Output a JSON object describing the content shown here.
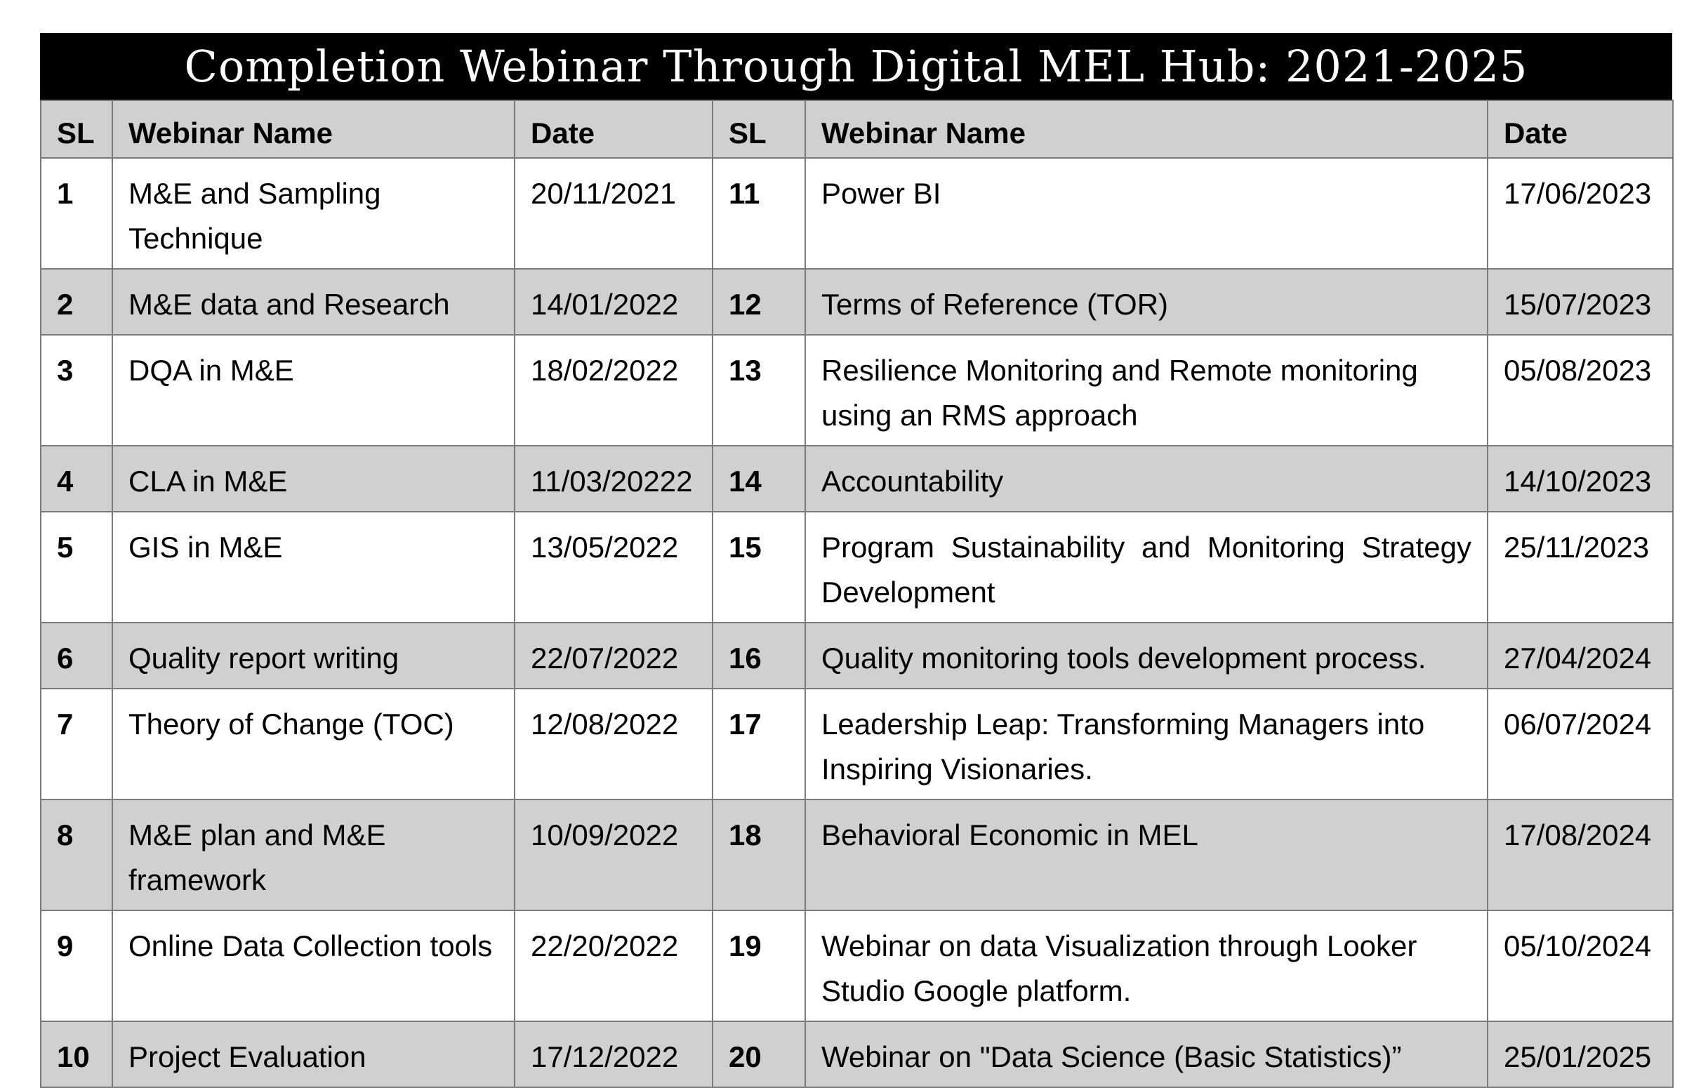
{
  "title": "Completion Webinar Through Digital MEL Hub: 2021-2025",
  "headers": [
    "SL",
    "Webinar Name",
    "Date",
    "SL",
    "Webinar Name",
    "Date"
  ],
  "rows": [
    {
      "left": {
        "sl": "1",
        "name": "M&E and Sampling Technique",
        "date": "20/11/2021"
      },
      "right": {
        "sl": "11",
        "name": "Power BI",
        "date": "17/06/2023"
      }
    },
    {
      "left": {
        "sl": "2",
        "name": "M&E data and Research",
        "date": "14/01/2022"
      },
      "right": {
        "sl": "12",
        "name": "Terms of Reference (TOR)",
        "date": "15/07/2023"
      }
    },
    {
      "left": {
        "sl": "3",
        "name": "DQA in M&E",
        "date": "18/02/2022"
      },
      "right": {
        "sl": "13",
        "name": "Resilience Monitoring and Remote monitoring using an RMS approach",
        "date": "05/08/2023"
      }
    },
    {
      "left": {
        "sl": "4",
        "name": "CLA in M&E",
        "date": "11/03/20222"
      },
      "right": {
        "sl": "14",
        "name": "Accountability",
        "date": "14/10/2023"
      }
    },
    {
      "left": {
        "sl": "5",
        "name": "GIS in M&E",
        "date": "13/05/2022"
      },
      "right": {
        "sl": "15",
        "name": "Program Sustainability and Monitoring Strategy Development",
        "date": "25/11/2023"
      }
    },
    {
      "left": {
        "sl": "6",
        "name": "Quality report writing",
        "date": "22/07/2022"
      },
      "right": {
        "sl": "16",
        "name": "Quality monitoring tools development process.",
        "date": "27/04/2024"
      }
    },
    {
      "left": {
        "sl": "7",
        "name": "Theory of Change (TOC)",
        "date": "12/08/2022"
      },
      "right": {
        "sl": "17",
        "name": "Leadership Leap: Transforming Managers into Inspiring Visionaries.",
        "date": "06/07/2024"
      }
    },
    {
      "left": {
        "sl": "8",
        "name": "M&E plan and M&E framework",
        "date": "10/09/2022"
      },
      "right": {
        "sl": "18",
        "name": "Behavioral Economic in MEL",
        "date": "17/08/2024"
      }
    },
    {
      "left": {
        "sl": "9",
        "name": "Online Data Collection tools",
        "date": "22/20/2022"
      },
      "right": {
        "sl": "19",
        "name": "Webinar on data Visualization through Looker Studio Google platform.",
        "date": "05/10/2024"
      }
    },
    {
      "left": {
        "sl": "10",
        "name": "Project Evaluation",
        "date": "17/12/2022"
      },
      "right": {
        "sl": "20",
        "name": "Webinar on \"Data Science (Basic Statistics)”",
        "date": "25/01/2025"
      }
    }
  ]
}
